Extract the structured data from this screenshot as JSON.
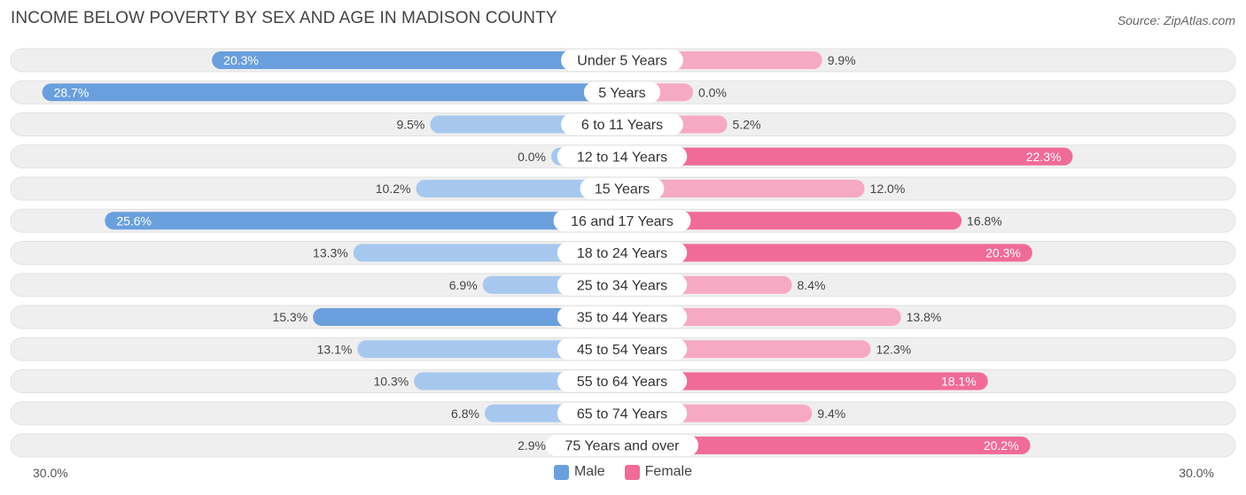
{
  "header": {
    "title": "INCOME BELOW POVERTY BY SEX AND AGE IN MADISON COUNTY",
    "source": "Source: ZipAtlas.com"
  },
  "axis": {
    "left_label": "30.0%",
    "right_label": "30.0%"
  },
  "legend": {
    "male_label": "Male",
    "female_label": "Female"
  },
  "colors": {
    "male_strong": "#6a9fde",
    "male_light": "#a7c8ee",
    "female_strong": "#f06b97",
    "female_light": "#f6a9c3",
    "track": "#efefef"
  },
  "chart_data": {
    "type": "bar",
    "orientation": "horizontal-diverging",
    "title": "INCOME BELOW POVERTY BY SEX AND AGE IN MADISON COUNTY",
    "xlim": [
      -30,
      30
    ],
    "categories": [
      "Under 5 Years",
      "5 Years",
      "6 to 11 Years",
      "12 to 14 Years",
      "15 Years",
      "16 and 17 Years",
      "18 to 24 Years",
      "25 to 34 Years",
      "35 to 44 Years",
      "45 to 54 Years",
      "55 to 64 Years",
      "65 to 74 Years",
      "75 Years and over"
    ],
    "series": [
      {
        "name": "Male",
        "values": [
          20.3,
          28.7,
          9.5,
          0.0,
          10.2,
          25.6,
          13.3,
          6.9,
          15.3,
          13.1,
          10.3,
          6.8,
          2.9
        ],
        "labels": [
          "20.3%",
          "28.7%",
          "9.5%",
          "0.0%",
          "10.2%",
          "25.6%",
          "13.3%",
          "6.9%",
          "15.3%",
          "13.1%",
          "10.3%",
          "6.8%",
          "2.9%"
        ]
      },
      {
        "name": "Female",
        "values": [
          9.9,
          0.0,
          5.2,
          22.3,
          12.0,
          16.8,
          20.3,
          8.4,
          13.8,
          12.3,
          18.1,
          9.4,
          20.2
        ],
        "labels": [
          "9.9%",
          "0.0%",
          "5.2%",
          "22.3%",
          "12.0%",
          "16.8%",
          "20.3%",
          "8.4%",
          "13.8%",
          "12.3%",
          "18.1%",
          "9.4%",
          "20.2%"
        ]
      }
    ]
  }
}
